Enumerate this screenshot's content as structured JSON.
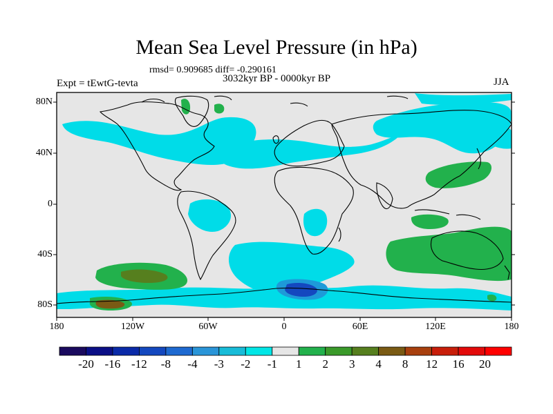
{
  "title": "Mean Sea Level Pressure (in hPa)",
  "stats_line": "rmsd= 0.909685 diff= -0.290161",
  "period": "3032kyr BP - 0000kyr BP",
  "experiment": "Expt = tEwtG-tevta",
  "season": "JJA",
  "lat_labels": [
    "80N",
    "40N",
    "0",
    "40S",
    "80S"
  ],
  "lon_labels": [
    "180",
    "120W",
    "60W",
    "0",
    "60E",
    "120E",
    "180"
  ],
  "colorbar": {
    "labels": [
      "-20",
      "-16",
      "-12",
      "-8",
      "-4",
      "-3",
      "-2",
      "-1",
      "1",
      "2",
      "3",
      "4",
      "8",
      "12",
      "16",
      "20"
    ],
    "colors": [
      "#1a0a5e",
      "#0b0f86",
      "#0a2aa8",
      "#1448bf",
      "#1e6ad1",
      "#2a95d8",
      "#18bcd8",
      "#00e6e6",
      "#e6e6e6",
      "#22b14c",
      "#3a9a2a",
      "#567f1e",
      "#7a5a14",
      "#a8400e",
      "#c81e0a",
      "#e30a0a",
      "#ff0000"
    ]
  },
  "map_colors": {
    "background": "#e6e6e6",
    "neg_weak": "#00dce8",
    "neg_mid": "#1e9ad8",
    "neg_strong": "#1448bf",
    "pos_weak": "#22b14c",
    "pos_mid": "#567f1e",
    "pos_strong": "#7a5a14"
  }
}
